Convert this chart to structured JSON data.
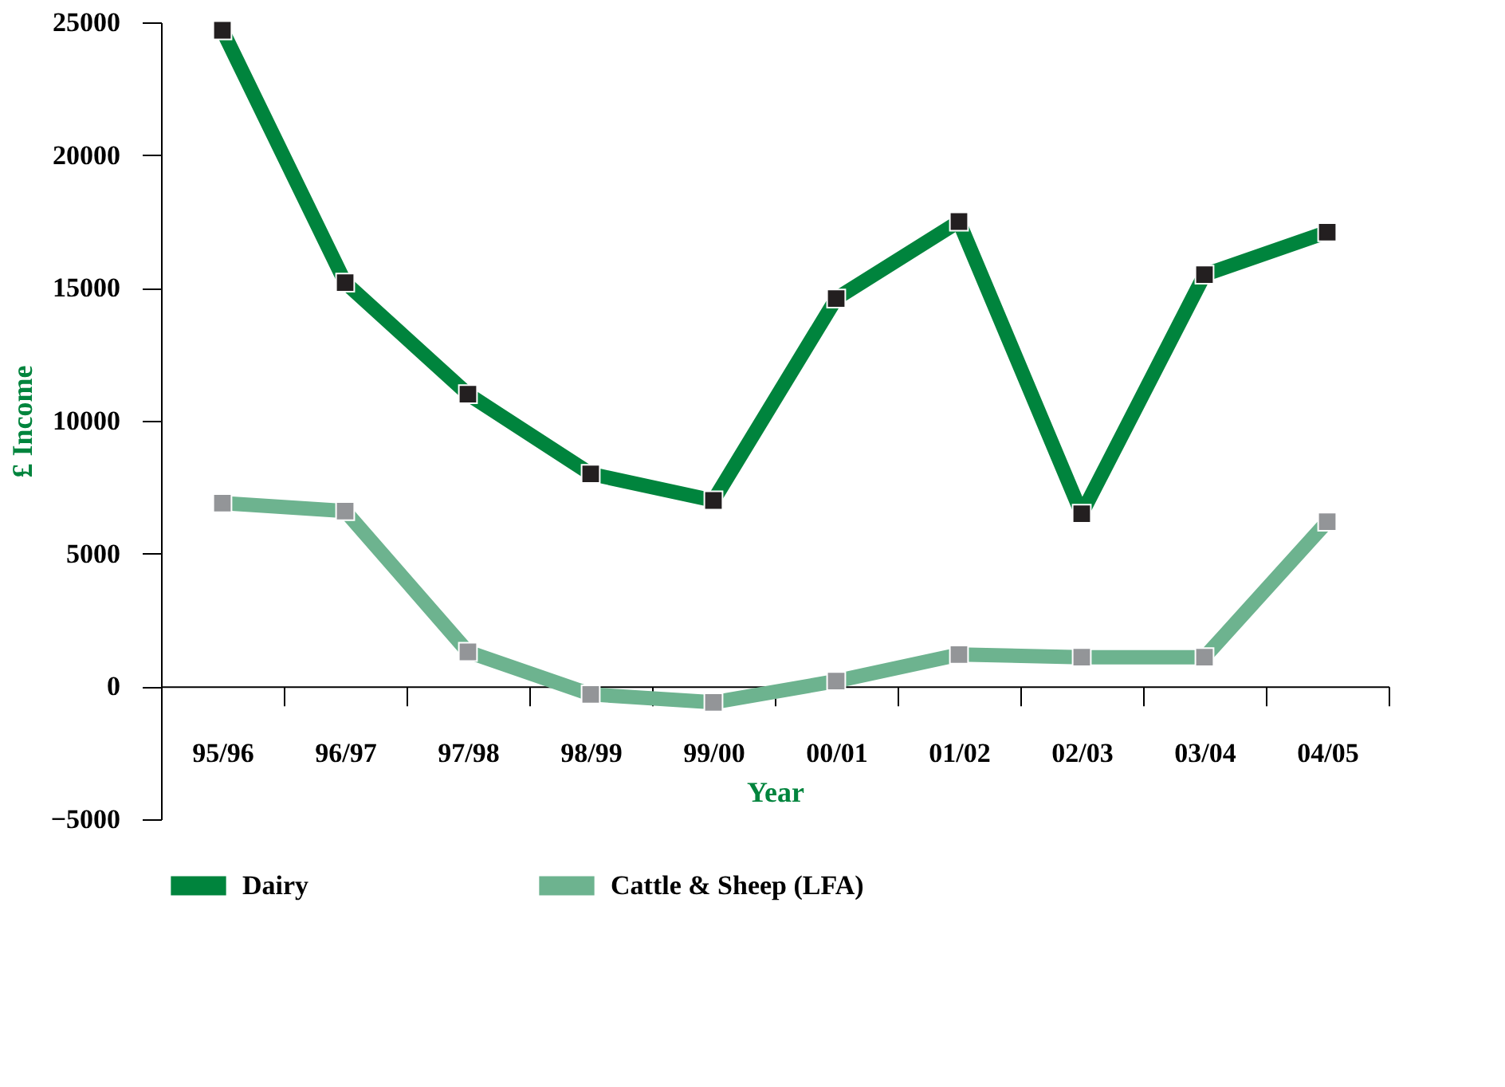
{
  "chart_data": {
    "type": "line",
    "xlabel": "Year",
    "ylabel": "£ Income",
    "categories": [
      "95/96",
      "96/97",
      "97/98",
      "98/99",
      "99/00",
      "00/01",
      "01/02",
      "02/03",
      "03/04",
      "04/05"
    ],
    "series": [
      {
        "name": "Dairy",
        "color": "#00843d",
        "values": [
          24700,
          15200,
          11000,
          8000,
          7000,
          14600,
          17500,
          6500,
          15500,
          17100
        ]
      },
      {
        "name": "Cattle & Sheep (LFA)",
        "color": "#6db38f",
        "values": [
          6900,
          6600,
          1300,
          -300,
          -600,
          200,
          1200,
          1100,
          1100,
          6200
        ]
      }
    ],
    "ylim": [
      -5000,
      25000
    ],
    "yticks": [
      -5000,
      0,
      5000,
      10000,
      15000,
      20000,
      25000
    ],
    "grid": false,
    "legend": "bottom",
    "marker": "square",
    "line_style": "solid"
  }
}
